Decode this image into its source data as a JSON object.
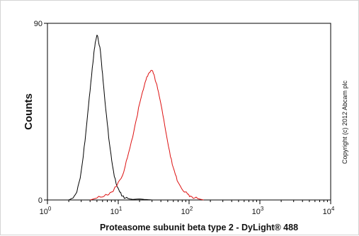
{
  "chart_data": {
    "type": "line",
    "title": "",
    "xlabel": "Proteasome subunit beta type 2 - DyLight® 488",
    "ylabel": "Counts",
    "x_scale": "log",
    "xlim": [
      1,
      10000
    ],
    "ylim": [
      0,
      90
    ],
    "x_ticks": [
      {
        "value": 1,
        "base": "10",
        "exp": "0"
      },
      {
        "value": 10,
        "base": "10",
        "exp": "1"
      },
      {
        "value": 100,
        "base": "10",
        "exp": "2"
      },
      {
        "value": 1000,
        "base": "10",
        "exp": "3"
      },
      {
        "value": 10000,
        "base": "10",
        "exp": "4"
      }
    ],
    "y_ticks": [
      {
        "value": 0,
        "label": "0"
      },
      {
        "value": 90,
        "label": "90"
      }
    ],
    "grid": false,
    "series": [
      {
        "color": "#000000",
        "x": [
          2.0,
          2.3,
          2.6,
          2.9,
          3.2,
          3.5,
          3.8,
          4.1,
          4.4,
          4.6,
          4.8,
          5.0,
          5.2,
          5.5,
          5.8,
          6.1,
          6.5,
          7.0,
          7.5,
          8.1,
          8.8,
          9.6,
          10.5,
          11.5,
          12.5,
          13.5,
          14.5,
          16.0,
          20.0,
          25.0,
          30.0
        ],
        "y": [
          0,
          1,
          4,
          11,
          22,
          35,
          48,
          60,
          70,
          77,
          81,
          84,
          82,
          78,
          70,
          61,
          50,
          39,
          29,
          20,
          12,
          7,
          4,
          2,
          1,
          1,
          0.5,
          0.3,
          0.5,
          0.2,
          0
        ]
      },
      {
        "color": "#dd1111",
        "x": [
          4.0,
          5.0,
          6.0,
          7.0,
          8.0,
          9.5,
          11.0,
          12.5,
          14.0,
          16.0,
          18.0,
          20.0,
          22.0,
          24.0,
          26.0,
          28.0,
          30.0,
          32.0,
          34.0,
          37.0,
          40.0,
          44.0,
          48.0,
          53.0,
          58.0,
          64.0,
          70.0,
          78.0,
          86.0,
          95.0,
          105.0,
          120.0,
          140.0,
          160.0
        ],
        "y": [
          0,
          1,
          1.5,
          2.5,
          4,
          7,
          11,
          17,
          24,
          32,
          41,
          49,
          55,
          60,
          63,
          65,
          66,
          64,
          60,
          55,
          49,
          41,
          33,
          25,
          18,
          13,
          9,
          6,
          4,
          3,
          2,
          1,
          0.5,
          0
        ]
      }
    ]
  },
  "copyright": "Copyright (c) 2012 Abcam plc"
}
